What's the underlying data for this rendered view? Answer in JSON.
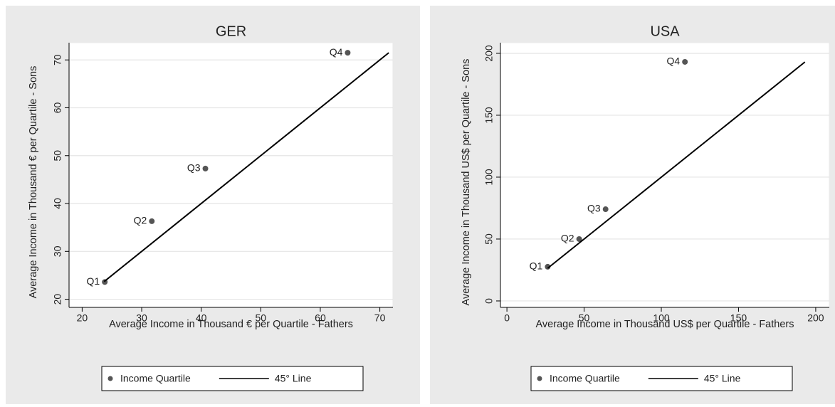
{
  "chart_data": [
    {
      "type": "scatter",
      "title": "GER",
      "x_label": "Average Income in Thousand € per Quartile - Fathers",
      "y_label": "Average Income in Thousand € per Quartile - Sons",
      "xlim": [
        17.8,
        72.2
      ],
      "ylim": [
        18.3,
        73.6
      ],
      "xticks": [
        20,
        30,
        40,
        50,
        60,
        70
      ],
      "yticks": [
        20,
        30,
        40,
        50,
        60,
        70
      ],
      "grid": true,
      "series": [
        {
          "name": "Income Quartile",
          "type": "scatter",
          "color": "#555555",
          "x": [
            23.8,
            31.7,
            40.7,
            64.6
          ],
          "values": [
            23.6,
            36.3,
            47.3,
            71.5
          ],
          "point_labels": [
            "Q1",
            "Q2",
            "Q3",
            "Q4"
          ]
        },
        {
          "name": "45° Line",
          "type": "line",
          "color": "#000000",
          "x": [
            23.7,
            71.5
          ],
          "values": [
            23.7,
            71.5
          ]
        }
      ]
    },
    {
      "type": "scatter",
      "title": "USA",
      "x_label": "Average Income in Thousand US$ per Quartile - Fathers",
      "y_label": "Average Income in Thousand US$ per Quartile - Sons",
      "xlim": [
        -4.2,
        208.8
      ],
      "ylim": [
        -5.2,
        208.6
      ],
      "xticks": [
        0,
        50,
        100,
        150,
        200
      ],
      "yticks": [
        0,
        50,
        100,
        150,
        200
      ],
      "grid": true,
      "series": [
        {
          "name": "Income Quartile",
          "type": "scatter",
          "color": "#555555",
          "x": [
            26.4,
            46.8,
            63.9,
            115.3
          ],
          "values": [
            27.6,
            50,
            74.1,
            193.1
          ],
          "point_labels": [
            "Q1",
            "Q2",
            "Q3",
            "Q4"
          ]
        },
        {
          "name": "45° Line",
          "type": "line",
          "color": "#000000",
          "x": [
            26.4,
            193
          ],
          "values": [
            26.4,
            193
          ]
        }
      ]
    }
  ]
}
